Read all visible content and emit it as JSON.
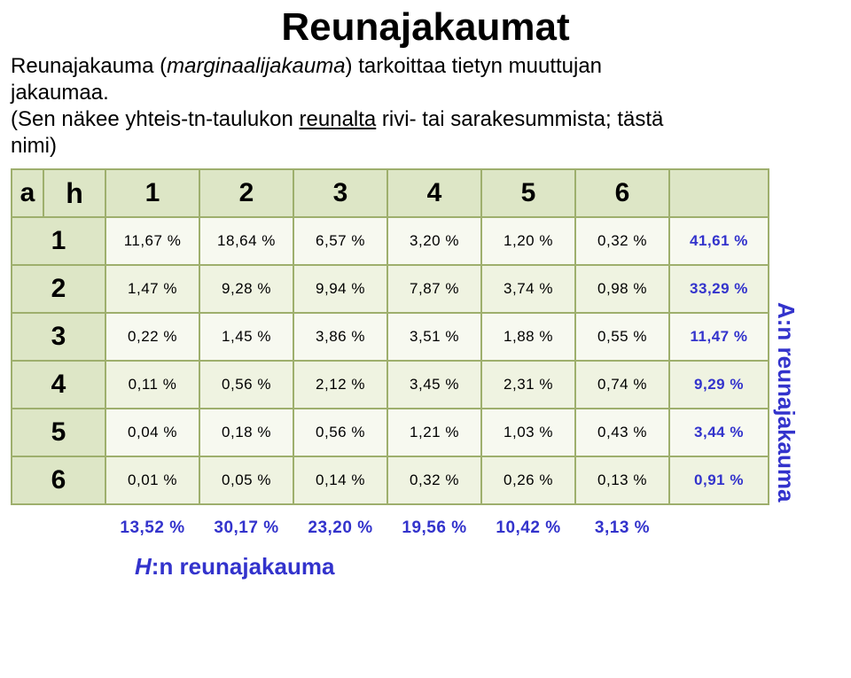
{
  "title": "Reunajakaumat",
  "intro": {
    "part1": "Reunajakauma (",
    "italic": "marginaalijakauma",
    "part2": ") tarkoittaa tietyn muuttujan jakaumaa.",
    "part3a": "(Sen näkee yhteis-tn-taulukon ",
    "underline": "reunalta",
    "part3b": " rivi- tai sarakesummista; tästä nimi)"
  },
  "labels": {
    "a": "a",
    "h": "h",
    "cols": [
      "1",
      "2",
      "3",
      "4",
      "5",
      "6"
    ],
    "rows": [
      "1",
      "2",
      "3",
      "4",
      "5",
      "6"
    ],
    "vertical": "A:n reunajakauma",
    "bottom_first": "H",
    "bottom_rest": ":n reunajakauma"
  },
  "table": {
    "cells": [
      [
        "11,67 %",
        "18,64 %",
        "6,57 %",
        "3,20 %",
        "1,20 %",
        "0,32 %"
      ],
      [
        "1,47 %",
        "9,28 %",
        "9,94 %",
        "7,87 %",
        "3,74 %",
        "0,98 %"
      ],
      [
        "0,22 %",
        "1,45 %",
        "3,86 %",
        "3,51 %",
        "1,88 %",
        "0,55 %"
      ],
      [
        "0,11 %",
        "0,56 %",
        "2,12 %",
        "3,45 %",
        "2,31 %",
        "0,74 %"
      ],
      [
        "0,04 %",
        "0,18 %",
        "0,56 %",
        "1,21 %",
        "1,03 %",
        "0,43 %"
      ],
      [
        "0,01 %",
        "0,05 %",
        "0,14 %",
        "0,32 %",
        "0,26 %",
        "0,13 %"
      ]
    ],
    "row_margins": [
      "41,61 %",
      "33,29 %",
      "11,47 %",
      "9,29 %",
      "3,44 %",
      "0,91 %"
    ],
    "col_margins": [
      "13,52 %",
      "30,17 %",
      "23,20 %",
      "19,56 %",
      "10,42 %",
      "3,13 %"
    ]
  },
  "colors": {
    "header_bg": "#dde6c6",
    "row_even_bg": "#f7f9f0",
    "row_odd_bg": "#eff3e1",
    "border": "#9eaf6d",
    "margin_text": "#3333cc",
    "text": "#000000",
    "page_bg": "#ffffff"
  }
}
